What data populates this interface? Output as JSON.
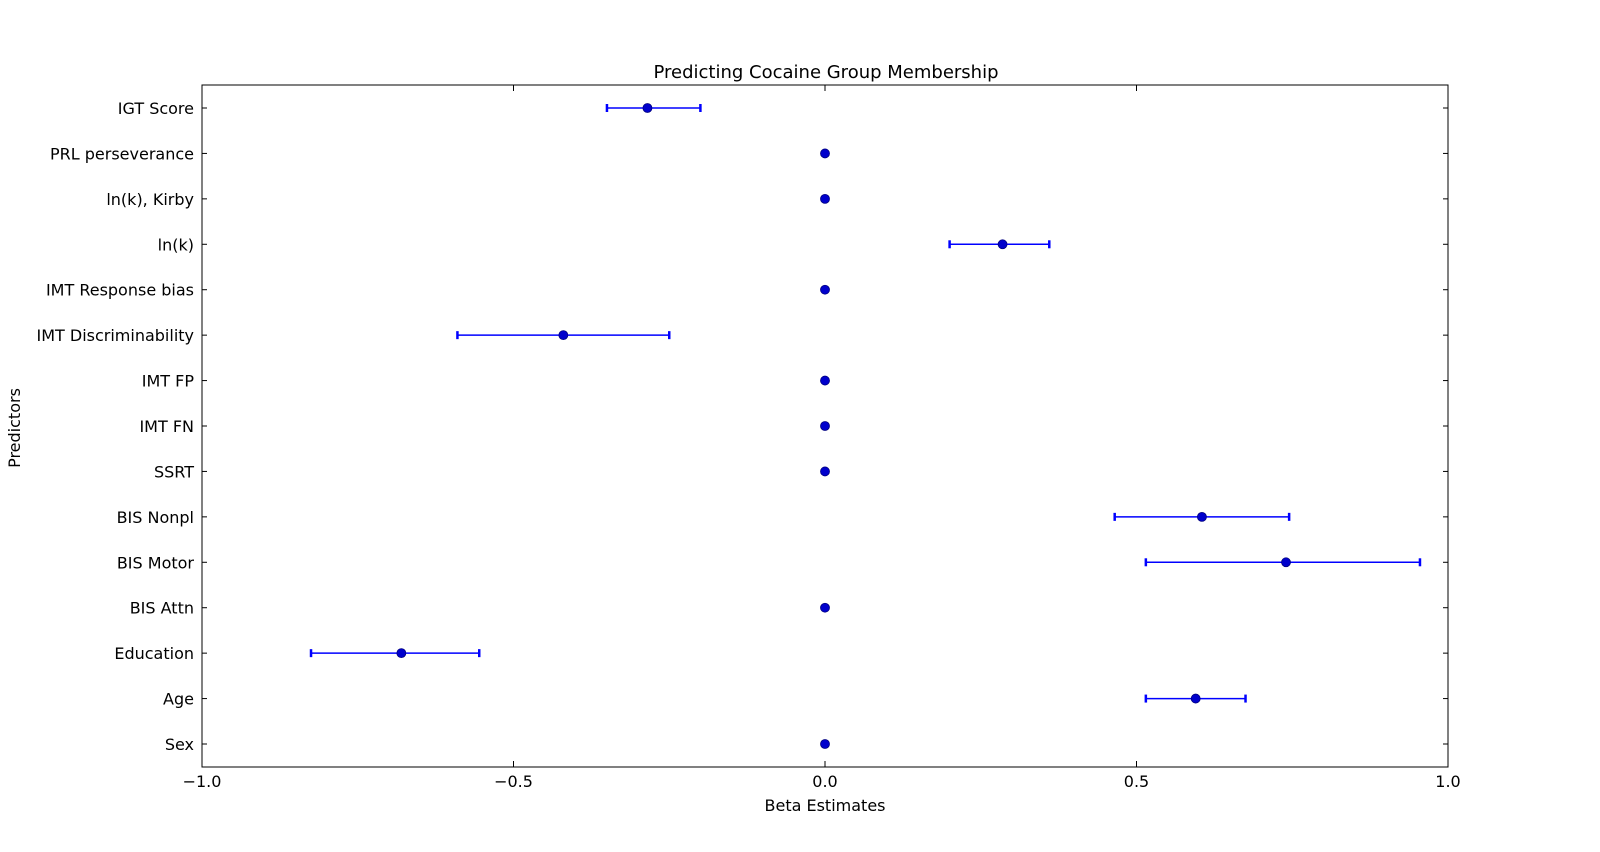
{
  "chart_data": {
    "type": "scatter",
    "title": "Predicting Cocaine Group Membership",
    "xlabel": "Beta Estimates",
    "ylabel": "Predictors",
    "xlim": [
      -1.0,
      1.0
    ],
    "xticks": [
      -1.0,
      -0.5,
      0.0,
      0.5,
      1.0
    ],
    "xtick_labels": [
      "−1.0",
      "−0.5",
      "0.0",
      "0.5",
      "1.0"
    ],
    "grid": false,
    "legend": "none",
    "color": "#0000ff",
    "marker_color": "#0000cc",
    "categories": [
      "IGT Score",
      "PRL perseverance",
      "ln(k), Kirby",
      "ln(k)",
      "IMT Response bias",
      "IMT Discriminability",
      "IMT FP",
      "IMT FN",
      "SSRT",
      "BIS Nonpl",
      "BIS Motor",
      "BIS Attn",
      "Education",
      "Age",
      "Sex"
    ],
    "points": [
      {
        "label": "IGT Score",
        "estimate": -0.285,
        "lower": -0.35,
        "upper": -0.2
      },
      {
        "label": "PRL perseverance",
        "estimate": 0.0,
        "lower": null,
        "upper": null
      },
      {
        "label": "ln(k), Kirby",
        "estimate": 0.0,
        "lower": null,
        "upper": null
      },
      {
        "label": "ln(k)",
        "estimate": 0.285,
        "lower": 0.2,
        "upper": 0.36
      },
      {
        "label": "IMT Response bias",
        "estimate": 0.0,
        "lower": null,
        "upper": null
      },
      {
        "label": "IMT Discriminability",
        "estimate": -0.42,
        "lower": -0.59,
        "upper": -0.25
      },
      {
        "label": "IMT FP",
        "estimate": 0.0,
        "lower": null,
        "upper": null
      },
      {
        "label": "IMT FN",
        "estimate": 0.0,
        "lower": null,
        "upper": null
      },
      {
        "label": "SSRT",
        "estimate": 0.0,
        "lower": null,
        "upper": null
      },
      {
        "label": "BIS Nonpl",
        "estimate": 0.605,
        "lower": 0.465,
        "upper": 0.745
      },
      {
        "label": "BIS Motor",
        "estimate": 0.74,
        "lower": 0.515,
        "upper": 0.955
      },
      {
        "label": "BIS Attn",
        "estimate": 0.0,
        "lower": null,
        "upper": null
      },
      {
        "label": "Education",
        "estimate": -0.68,
        "lower": -0.825,
        "upper": -0.555
      },
      {
        "label": "Age",
        "estimate": 0.595,
        "lower": 0.515,
        "upper": 0.675
      },
      {
        "label": "Sex",
        "estimate": 0.0,
        "lower": null,
        "upper": null
      }
    ]
  }
}
